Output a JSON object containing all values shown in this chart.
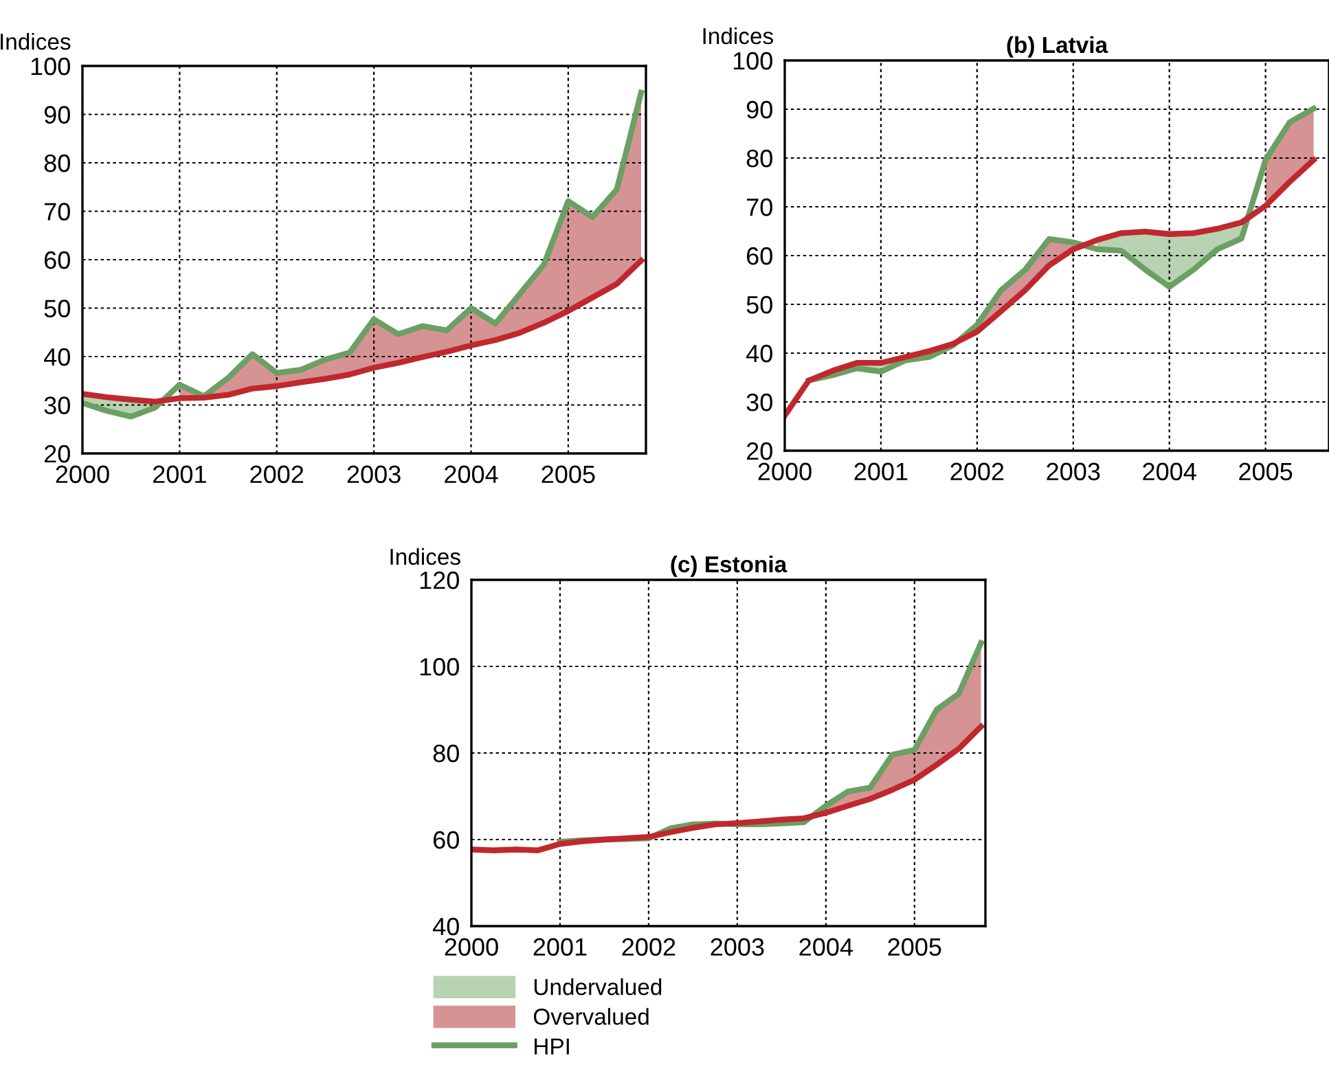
{
  "chart_data": [
    {
      "type": "line",
      "ylabel": "Indices",
      "xlim": [
        2000,
        2005.8
      ],
      "ylim": [
        20,
        100
      ],
      "xticks": [
        2000,
        2001,
        2002,
        2003,
        2004,
        2005
      ],
      "yticks": [
        20,
        30,
        40,
        50,
        60,
        70,
        80,
        90,
        100
      ],
      "grid": true,
      "legend": false,
      "x": [
        2000,
        2000.25,
        2000.5,
        2000.75,
        2001,
        2001.25,
        2001.5,
        2001.75,
        2002,
        2002.25,
        2002.5,
        2002.75,
        2003,
        2003.25,
        2003.5,
        2003.75,
        2004,
        2004.25,
        2004.5,
        2004.75,
        2005,
        2005.25,
        2005.5,
        2005.75
      ],
      "series": [
        {
          "color": "#b7d3b1",
          "values": [
            null,
            null,
            null,
            null,
            null,
            null,
            null,
            null,
            null,
            null,
            null,
            null,
            null,
            null,
            null,
            null,
            null,
            null,
            null,
            null,
            null,
            null,
            null,
            null
          ],
          "lower": [
            30.4,
            28.8,
            27.6,
            29.5,
            null,
            null,
            null,
            null,
            null,
            null,
            null,
            null,
            null,
            null,
            null,
            null,
            null,
            null,
            null,
            null,
            null,
            null,
            null,
            null
          ],
          "upper": [
            32.3,
            31.6,
            31.1,
            30.7,
            null,
            null,
            null,
            null,
            null,
            null,
            null,
            null,
            null,
            null,
            null,
            null,
            null,
            null,
            null,
            null,
            null,
            null,
            null,
            null
          ]
        },
        {
          "color": "#d69393",
          "values": [
            null,
            null,
            null,
            null,
            null,
            null,
            null,
            null,
            null,
            null,
            null,
            null,
            null,
            null,
            null,
            null,
            null,
            null,
            null,
            null,
            null,
            null,
            null,
            null
          ],
          "lower": [
            null,
            null,
            null,
            null,
            31.4,
            31.5,
            32.1,
            33.4,
            33.9,
            34.7,
            35.4,
            36.3,
            37.7,
            38.7,
            39.9,
            41.0,
            42.3,
            43.4,
            44.9,
            47.0,
            49.4,
            52.2,
            55.0,
            59.8
          ],
          "upper": [
            null,
            null,
            null,
            null,
            34.2,
            31.8,
            35.6,
            40.5,
            36.6,
            37.3,
            39.4,
            40.8,
            47.7,
            44.6,
            46.3,
            45.4,
            50.0,
            46.8,
            52.9,
            59.0,
            72.1,
            68.8,
            74.5,
            94.5
          ]
        },
        {
          "color": "#6b9f63",
          "values": [
            30.4,
            28.8,
            27.6,
            29.5,
            34.2,
            31.8,
            35.6,
            40.5,
            36.6,
            37.3,
            39.4,
            40.8,
            47.7,
            44.6,
            46.3,
            45.4,
            50.0,
            46.8,
            52.9,
            59.0,
            72.1,
            68.8,
            74.5,
            94.5
          ]
        },
        {
          "color": "#c0282d",
          "values": [
            32.3,
            31.6,
            31.1,
            30.7,
            31.4,
            31.5,
            32.1,
            33.4,
            33.9,
            34.7,
            35.4,
            36.3,
            37.7,
            38.7,
            39.9,
            41.0,
            42.3,
            43.4,
            44.9,
            47.0,
            49.4,
            52.2,
            55.0,
            59.8
          ]
        }
      ]
    },
    {
      "type": "line",
      "title": "(b) Latvia",
      "ylabel": "Indices",
      "xlim": [
        2000,
        2005.66
      ],
      "ylim": [
        20,
        100
      ],
      "xticks": [
        2000,
        2001,
        2002,
        2003,
        2004,
        2005
      ],
      "yticks": [
        20,
        30,
        40,
        50,
        60,
        70,
        80,
        90,
        100
      ],
      "grid": true,
      "legend": false,
      "x": [
        2000,
        2000.25,
        2000.5,
        2000.75,
        2001,
        2001.25,
        2001.5,
        2001.75,
        2002,
        2002.25,
        2002.5,
        2002.75,
        2003,
        2003.25,
        2003.5,
        2003.75,
        2004,
        2004.25,
        2004.5,
        2004.75,
        2005,
        2005.25,
        2005.5
      ],
      "series": [
        {
          "color": "#b7d3b1",
          "values": [
            null,
            null,
            null,
            null,
            null,
            null,
            null,
            null,
            null,
            null,
            null,
            null,
            null,
            null,
            null,
            null,
            null,
            null,
            null,
            null,
            null,
            null,
            null
          ],
          "lower": [
            null,
            null,
            35.5,
            36.9,
            36.2,
            38.5,
            39.2,
            41.6,
            null,
            null,
            null,
            null,
            null,
            61.3,
            61.0,
            57.1,
            53.6,
            57.1,
            61.3,
            63.5,
            null,
            null,
            null
          ],
          "upper": [
            null,
            null,
            36.4,
            38.0,
            38.0,
            39.2,
            40.4,
            41.9,
            null,
            null,
            null,
            null,
            null,
            63.2,
            64.6,
            64.9,
            64.4,
            64.6,
            65.5,
            66.8,
            null,
            null,
            null
          ]
        },
        {
          "color": "#d69393",
          "values": [
            null,
            null,
            null,
            null,
            null,
            null,
            null,
            null,
            null,
            null,
            null,
            null,
            null,
            null,
            null,
            null,
            null,
            null,
            null,
            null,
            null,
            null,
            null
          ],
          "lower": [
            null,
            null,
            null,
            null,
            null,
            null,
            null,
            null,
            44.4,
            48.6,
            52.9,
            58.0,
            61.3,
            null,
            null,
            null,
            null,
            null,
            null,
            null,
            70.2,
            75.1,
            79.6
          ],
          "upper": [
            null,
            null,
            null,
            null,
            null,
            null,
            null,
            null,
            45.8,
            52.9,
            57.1,
            63.4,
            62.7,
            null,
            null,
            null,
            null,
            null,
            null,
            null,
            79.6,
            87.3,
            90.1
          ]
        },
        {
          "color": "#6b9f63",
          "values": [
            null,
            34.4,
            35.5,
            36.9,
            36.2,
            38.5,
            39.2,
            41.6,
            45.8,
            52.9,
            57.1,
            63.4,
            62.7,
            61.3,
            61.0,
            57.1,
            53.6,
            57.1,
            61.3,
            63.5,
            79.6,
            87.3,
            90.1
          ]
        },
        {
          "color": "#c0282d",
          "values": [
            27.2,
            34.4,
            36.4,
            38.0,
            38.0,
            39.2,
            40.4,
            41.9,
            44.4,
            48.6,
            52.9,
            58.0,
            61.3,
            63.2,
            64.6,
            64.9,
            64.4,
            64.6,
            65.5,
            66.8,
            70.2,
            75.1,
            79.6
          ]
        }
      ]
    },
    {
      "type": "line",
      "title": "(c) Estonia",
      "ylabel": "Indices",
      "xlim": [
        2000,
        2005.8
      ],
      "ylim": [
        40,
        120
      ],
      "xticks": [
        2000,
        2001,
        2002,
        2003,
        2004,
        2005
      ],
      "yticks": [
        40,
        60,
        80,
        100,
        120
      ],
      "grid": true,
      "legend": "bottom",
      "x": [
        2000,
        2000.25,
        2000.5,
        2000.75,
        2001,
        2001.25,
        2001.5,
        2001.75,
        2002,
        2002.25,
        2002.5,
        2002.75,
        2003,
        2003.25,
        2003.5,
        2003.75,
        2004,
        2004.25,
        2004.5,
        2004.75,
        2005,
        2005.25,
        2005.5,
        2005.75
      ],
      "series": [
        {
          "name": "Undervalued",
          "color": "#b7d3b1",
          "values": [
            null,
            null,
            null,
            null,
            null,
            null,
            null,
            null,
            null,
            null,
            null,
            null,
            null,
            null,
            null,
            null,
            null,
            null,
            null,
            null,
            null,
            null,
            null,
            null
          ],
          "lower": [
            null,
            null,
            null,
            null,
            null,
            null,
            null,
            null,
            null,
            null,
            null,
            null,
            null,
            null,
            null,
            null,
            null,
            null,
            null,
            null,
            null,
            null,
            null,
            null
          ],
          "upper": [
            null,
            null,
            null,
            null,
            null,
            null,
            null,
            null,
            null,
            null,
            null,
            null,
            null,
            null,
            null,
            null,
            null,
            null,
            null,
            null,
            null,
            null,
            null,
            null
          ]
        },
        {
          "name": "Overvalued",
          "color": "#d69393",
          "values": [
            null,
            null,
            null,
            null,
            null,
            null,
            null,
            null,
            null,
            null,
            null,
            null,
            null,
            null,
            null,
            null,
            null,
            null,
            null,
            null,
            null,
            null,
            null,
            null
          ],
          "lower": [
            null,
            null,
            null,
            null,
            59.0,
            59.6,
            null,
            null,
            null,
            61.7,
            62.7,
            63.5,
            null,
            null,
            null,
            null,
            66.2,
            67.8,
            69.4,
            71.5,
            73.8,
            77.3,
            81.0,
            86.1
          ],
          "upper": [
            null,
            null,
            null,
            null,
            59.5,
            59.8,
            null,
            null,
            null,
            62.6,
            63.5,
            63.7,
            null,
            null,
            null,
            null,
            67.8,
            71.1,
            72.0,
            79.6,
            80.7,
            90.0,
            93.7,
            105.4
          ]
        },
        {
          "name": "HPI",
          "color": "#6b9f63",
          "values": [
            null,
            null,
            null,
            null,
            59.5,
            59.8,
            60.0,
            60.1,
            60.3,
            62.6,
            63.5,
            63.7,
            63.5,
            63.5,
            63.7,
            64.0,
            67.8,
            71.1,
            72.0,
            79.6,
            80.7,
            90.0,
            93.7,
            105.4
          ]
        },
        {
          "color": "#c0282d",
          "values": [
            57.7,
            57.5,
            57.7,
            57.5,
            59.0,
            59.6,
            60.0,
            60.3,
            60.6,
            61.7,
            62.7,
            63.5,
            63.8,
            64.2,
            64.6,
            64.9,
            66.2,
            67.8,
            69.4,
            71.5,
            73.8,
            77.3,
            81.0,
            86.1
          ]
        }
      ]
    }
  ]
}
